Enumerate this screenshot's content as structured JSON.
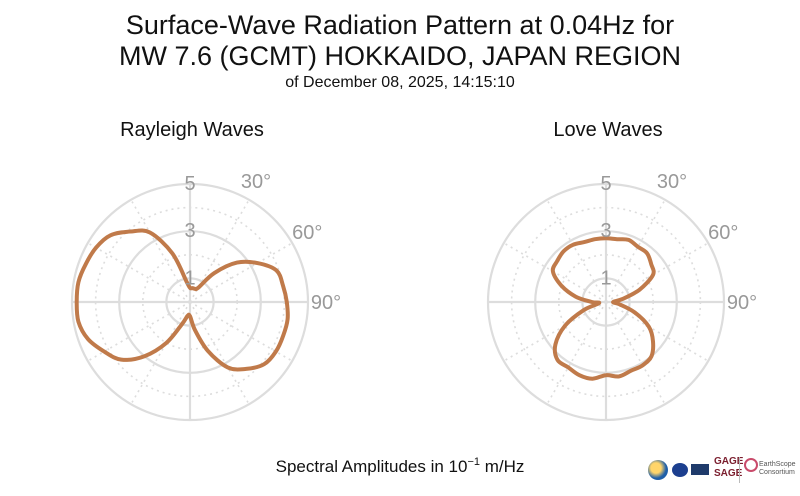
{
  "title": {
    "line1": "Surface-Wave Radiation Pattern at 0.04Hz for",
    "line2": "MW 7.6 (GCMT) HOKKAIDO, JAPAN REGION",
    "subtitle": "of December 08, 2025, 14:15:10"
  },
  "footer": {
    "text": "Spectral Amplitudes in ",
    "base": "10",
    "exponent": "−1",
    "unit": " m/Hz"
  },
  "logos": {
    "gage_line1": "GAGE",
    "gage_line2": "SAGE",
    "earthscope_line1": "EarthScope",
    "earthscope_line2": "Consortium"
  },
  "colors": {
    "curve": "#c07a4a",
    "grid": "#dddddd",
    "tick_text": "#999999"
  },
  "chart_data": [
    {
      "type": "polar-line",
      "title": "Rayleigh Waves",
      "radial_ticks": [
        1,
        3,
        5
      ],
      "radial_max": 5,
      "angle_ticks": [
        "30°",
        "60°",
        "90°"
      ],
      "angle_tick_values": [
        30,
        60,
        90
      ],
      "angular_gridlines_step_deg": 30,
      "grid": true,
      "series": [
        {
          "azimuth_deg": [
            0,
            10,
            20,
            30,
            40,
            50,
            60,
            70,
            80,
            90,
            100,
            110,
            120,
            130,
            140,
            150,
            160,
            170,
            180,
            190,
            200,
            210,
            220,
            230,
            240,
            250,
            260,
            270,
            280,
            290,
            300,
            310,
            320,
            330,
            340,
            350
          ],
          "amplitude": [
            0.6,
            0.6,
            0.6,
            0.7,
            1.6,
            2.6,
            3.3,
            3.9,
            4.0,
            4.1,
            4.2,
            4.2,
            4.2,
            4.1,
            3.7,
            3.2,
            2.2,
            1.2,
            0.6,
            0.6,
            1.0,
            2.0,
            3.0,
            3.8,
            4.2,
            4.6,
            4.8,
            4.8,
            4.8,
            4.7,
            4.6,
            4.4,
            3.9,
            3.4,
            2.2,
            0.9
          ]
        }
      ]
    },
    {
      "type": "polar-line",
      "title": "Love Waves",
      "radial_ticks": [
        1,
        3,
        5
      ],
      "radial_max": 5,
      "angle_ticks": [
        "30°",
        "60°",
        "90°"
      ],
      "angle_tick_values": [
        30,
        60,
        90
      ],
      "angular_gridlines_step_deg": 30,
      "grid": true,
      "series": [
        {
          "azimuth_deg": [
            0,
            10,
            20,
            30,
            40,
            50,
            60,
            70,
            80,
            90,
            100,
            110,
            120,
            130,
            140,
            150,
            160,
            170,
            180,
            190,
            200,
            210,
            220,
            230,
            240,
            250,
            260,
            270,
            280,
            290,
            300,
            310,
            320,
            330,
            340,
            350
          ],
          "amplitude": [
            2.7,
            2.7,
            2.8,
            2.7,
            2.7,
            2.5,
            2.3,
            1.5,
            0.7,
            0.3,
            0.6,
            1.3,
            2.1,
            2.6,
            3.0,
            3.1,
            3.1,
            3.2,
            3.1,
            3.3,
            3.3,
            3.2,
            3.2,
            2.8,
            2.0,
            1.0,
            0.3,
            0.6,
            1.3,
            2.0,
            2.6,
            2.7,
            2.8,
            2.8,
            2.7,
            2.7
          ]
        }
      ]
    }
  ]
}
